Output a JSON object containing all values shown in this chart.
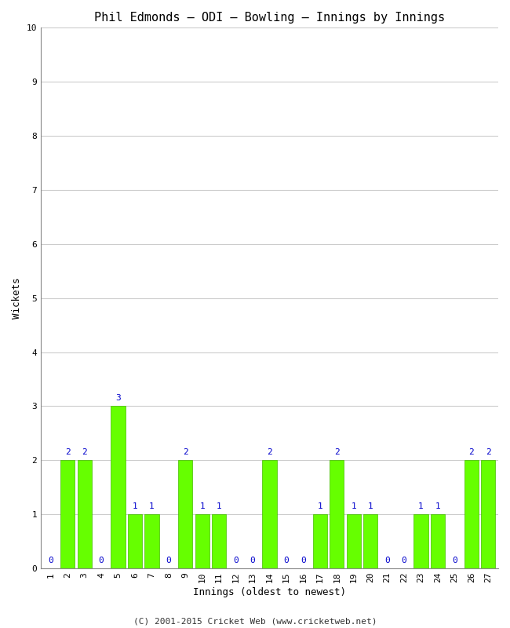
{
  "title": "Phil Edmonds – ODI – Bowling – Innings by Innings",
  "xlabel": "Innings (oldest to newest)",
  "ylabel": "Wickets",
  "ylim": [
    0,
    10
  ],
  "yticks": [
    0,
    1,
    2,
    3,
    4,
    5,
    6,
    7,
    8,
    9,
    10
  ],
  "innings": [
    1,
    2,
    3,
    4,
    5,
    6,
    7,
    8,
    9,
    10,
    11,
    12,
    13,
    14,
    15,
    16,
    17,
    18,
    19,
    20,
    21,
    22,
    23,
    24,
    25,
    26,
    27
  ],
  "wickets": [
    0,
    2,
    2,
    0,
    3,
    1,
    1,
    0,
    2,
    1,
    1,
    0,
    0,
    2,
    0,
    0,
    1,
    2,
    1,
    1,
    0,
    0,
    1,
    1,
    0,
    2,
    2
  ],
  "bar_color": "#66ff00",
  "bar_edge_color": "#44bb00",
  "label_color": "#0000cc",
  "background_color": "#ffffff",
  "plot_bg_color": "#ffffff",
  "grid_color": "#cccccc",
  "footer_text": "(C) 2001-2015 Cricket Web (www.cricketweb.net)",
  "title_fontsize": 11,
  "axis_label_fontsize": 9,
  "tick_label_fontsize": 8,
  "bar_label_fontsize": 8,
  "footer_fontsize": 8
}
